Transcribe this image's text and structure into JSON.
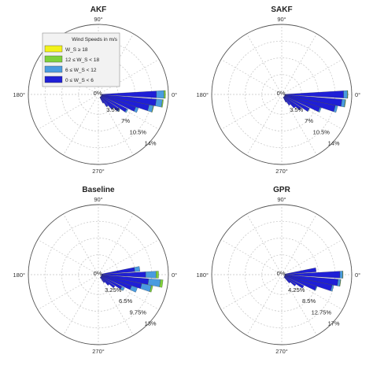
{
  "chart_data": [
    {
      "type": "wind-rose",
      "title": "AKF",
      "angle_labels": [
        "90°",
        "180°",
        "270°",
        "0°"
      ],
      "radial_max_percent": 14,
      "radial_tick_values": [
        0,
        3.5,
        7,
        10.5,
        14
      ],
      "radial_tick_labels": [
        "0%",
        "3.5%",
        "7%",
        "10.5%",
        "14%"
      ],
      "legend": {
        "title": "Wind Speeds in m/s",
        "position": "top-left",
        "entries": [
          {
            "label": "W_S ≥ 18",
            "color": "#f2f21a"
          },
          {
            "label": "12 ≤ W_S < 18",
            "color": "#7fd13b"
          },
          {
            "label": "6 ≤ W_S < 12",
            "color": "#4a9be0"
          },
          {
            "label": "0 ≤ W_S < 6",
            "color": "#1f1fd6"
          }
        ]
      },
      "series": [
        {
          "name": "0 ≤ W_S < 6",
          "color": "#1f1fd6",
          "directions_deg": [
            0,
            352,
            345,
            338,
            330,
            322,
            315,
            307,
            300
          ],
          "values": [
            11.5,
            11.5,
            10.2,
            7.6,
            6.0,
            4.6,
            3.5,
            2.4,
            1.4
          ]
        },
        {
          "name": "6 ≤ W_S < 12",
          "color": "#4a9be0",
          "directions_deg": [
            0,
            352,
            345,
            338,
            330,
            322,
            315,
            307,
            300
          ],
          "values": [
            1.6,
            1.3,
            0.9,
            0.6,
            0.3,
            0.2,
            0.1,
            0.1,
            0
          ]
        },
        {
          "name": "12 ≤ W_S < 18",
          "color": "#7fd13b",
          "directions_deg": [
            0,
            352,
            345
          ],
          "values": [
            0.3,
            0.2,
            0.1
          ]
        }
      ]
    },
    {
      "type": "wind-rose",
      "title": "SAKF",
      "angle_labels": [
        "90°",
        "180°",
        "270°",
        "0°"
      ],
      "radial_max_percent": 14,
      "radial_tick_values": [
        0,
        3.5,
        7,
        10.5,
        14
      ],
      "radial_tick_labels": [
        "0%",
        "3.5%",
        "7%",
        "10.5%",
        "14%"
      ],
      "series": [
        {
          "name": "0 ≤ W_S < 6",
          "color": "#1f1fd6",
          "directions_deg": [
            0,
            352,
            345,
            338,
            330,
            322,
            315,
            307,
            300
          ],
          "values": [
            12.3,
            12.0,
            10.8,
            7.8,
            5.8,
            4.3,
            3.2,
            2.1,
            1.2
          ]
        },
        {
          "name": "6 ≤ W_S < 12",
          "color": "#4a9be0",
          "directions_deg": [
            0,
            352,
            345,
            338,
            330
          ],
          "values": [
            0.8,
            0.7,
            0.5,
            0.3,
            0.1
          ]
        },
        {
          "name": "12 ≤ W_S < 18",
          "color": "#7fd13b",
          "directions_deg": [
            0,
            352
          ],
          "values": [
            0.1,
            0.1
          ]
        }
      ]
    },
    {
      "type": "wind-rose",
      "title": "Baseline",
      "angle_labels": [
        "90°",
        "180°",
        "270°",
        "0°"
      ],
      "radial_max_percent": 13,
      "radial_tick_values": [
        0,
        3.25,
        6.5,
        9.75,
        13
      ],
      "radial_tick_labels": [
        "0%",
        "3.25%",
        "6.5%",
        "9.75%",
        "13%"
      ],
      "series": [
        {
          "name": "0 ≤ W_S < 6",
          "color": "#1f1fd6",
          "directions_deg": [
            8,
            0,
            352,
            345,
            338,
            330,
            322,
            315,
            307
          ],
          "values": [
            6.5,
            8.6,
            9.2,
            8.0,
            6.2,
            4.5,
            3.3,
            2.2,
            1.3
          ]
        },
        {
          "name": "6 ≤ W_S < 12",
          "color": "#4a9be0",
          "directions_deg": [
            8,
            0,
            352,
            345,
            338,
            330
          ],
          "values": [
            1.0,
            2.0,
            2.3,
            1.9,
            1.2,
            0.6
          ]
        },
        {
          "name": "12 ≤ W_S < 18",
          "color": "#7fd13b",
          "directions_deg": [
            0,
            352,
            345
          ],
          "values": [
            0.5,
            0.5,
            0.3
          ]
        }
      ]
    },
    {
      "type": "wind-rose",
      "title": "GPR",
      "angle_labels": [
        "90°",
        "180°",
        "270°",
        "0°"
      ],
      "radial_max_percent": 17,
      "radial_tick_values": [
        0,
        4.25,
        8.5,
        12.75,
        17
      ],
      "radial_tick_labels": [
        "0%",
        "4.25%",
        "8.5%",
        "12.75%",
        "17%"
      ],
      "series": [
        {
          "name": "0 ≤ W_S < 6",
          "color": "#1f1fd6",
          "directions_deg": [
            8,
            0,
            352,
            345,
            338,
            330,
            322,
            315
          ],
          "values": [
            8.0,
            14.0,
            13.6,
            12.3,
            8.5,
            5.5,
            3.6,
            2.1
          ]
        },
        {
          "name": "6 ≤ W_S < 12",
          "color": "#4a9be0",
          "directions_deg": [
            0,
            352,
            345,
            338
          ],
          "values": [
            0.7,
            0.6,
            0.4,
            0.2
          ]
        },
        {
          "name": "12 ≤ W_S < 18",
          "color": "#7fd13b",
          "directions_deg": [
            0,
            352
          ],
          "values": [
            0.1,
            0.1
          ]
        }
      ]
    }
  ]
}
